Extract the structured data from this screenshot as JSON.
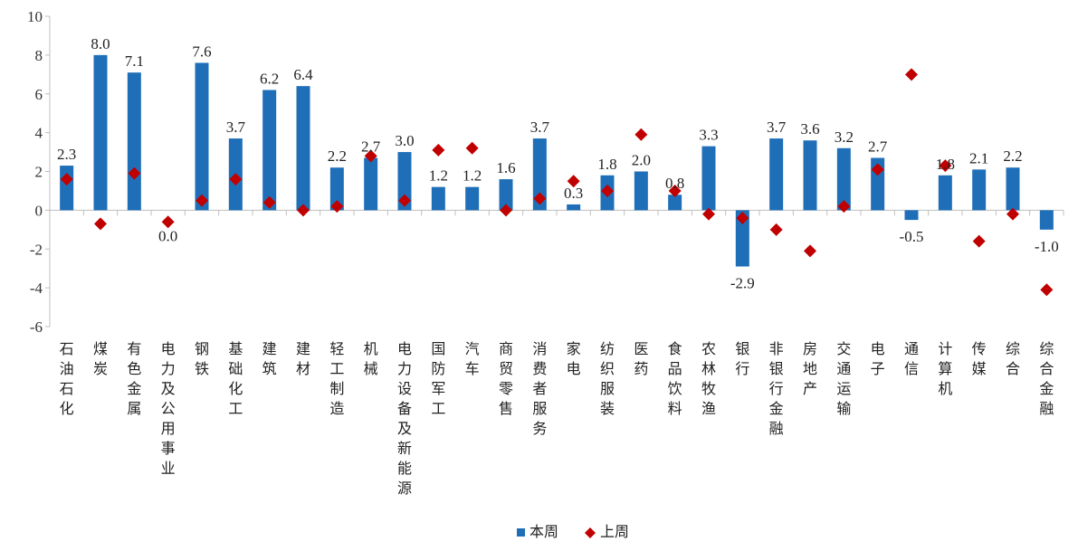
{
  "chart_data": {
    "type": "bar",
    "categories": [
      "石油石化",
      "煤炭",
      "有色金属",
      "电力及公用事业",
      "钢铁",
      "基础化工",
      "建筑",
      "建材",
      "轻工制造",
      "机械",
      "电力设备及新能源",
      "国防军工",
      "汽车",
      "商贸零售",
      "消费者服务",
      "家电",
      "纺织服装",
      "医药",
      "食品饮料",
      "农林牧渔",
      "银行",
      "非银行金融",
      "房地产",
      "交通运输",
      "电子",
      "通信",
      "计算机",
      "传媒",
      "综合",
      "综合金融"
    ],
    "series": [
      {
        "name": "本周",
        "type": "bar",
        "color": "#1f6fb8",
        "values": [
          2.3,
          8.0,
          7.1,
          0.0,
          7.6,
          3.7,
          6.2,
          6.4,
          2.2,
          2.7,
          3.0,
          1.2,
          1.2,
          1.6,
          3.7,
          0.3,
          1.8,
          2.0,
          0.8,
          3.3,
          -2.9,
          3.7,
          3.6,
          3.2,
          2.7,
          -0.5,
          1.8,
          2.1,
          2.2,
          -1.0
        ],
        "labels": [
          "2.3",
          "8.0",
          "7.1",
          "0.0",
          "7.6",
          "3.7",
          "6.2",
          "6.4",
          "2.2",
          "2.7",
          "3.0",
          "1.2",
          "1.2",
          "1.6",
          "3.7",
          "0.3",
          "1.8",
          "2.0",
          "0.8",
          "3.3",
          "-2.9",
          "3.7",
          "3.6",
          "3.2",
          "2.7",
          "-0.5",
          "1.8",
          "2.1",
          "2.2",
          "-1.0"
        ]
      },
      {
        "name": "上周",
        "type": "scatter",
        "marker": "diamond",
        "color": "#c00000",
        "values": [
          1.6,
          -0.7,
          1.9,
          -0.6,
          0.5,
          1.6,
          0.4,
          0.0,
          0.2,
          2.8,
          0.5,
          3.1,
          3.2,
          0.0,
          0.6,
          1.5,
          1.0,
          3.9,
          1.0,
          -0.2,
          -0.4,
          -1.0,
          -2.1,
          0.2,
          2.1,
          7.0,
          2.3,
          -1.6,
          -0.2,
          -4.1
        ]
      }
    ],
    "ylim": [
      -6,
      10
    ],
    "yticks": [
      -6,
      -4,
      -2,
      0,
      2,
      4,
      6,
      8,
      10
    ],
    "legend": "bottom-center",
    "grid": false
  }
}
